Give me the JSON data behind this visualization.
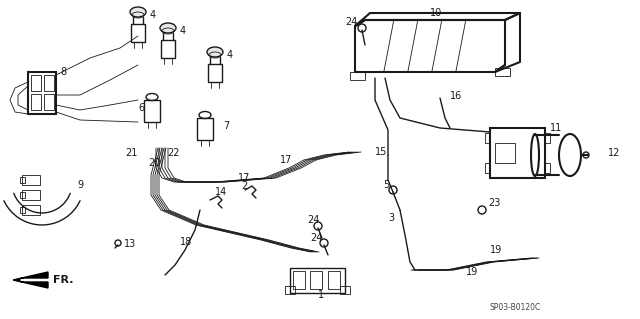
{
  "bg_color": "#f5f5f0",
  "line_color": "#1a1a1a",
  "label_color": "#111111",
  "diagram_code": "SP03-B0120C",
  "lw": 1.0,
  "lw_thick": 1.5,
  "lw_thin": 0.6
}
